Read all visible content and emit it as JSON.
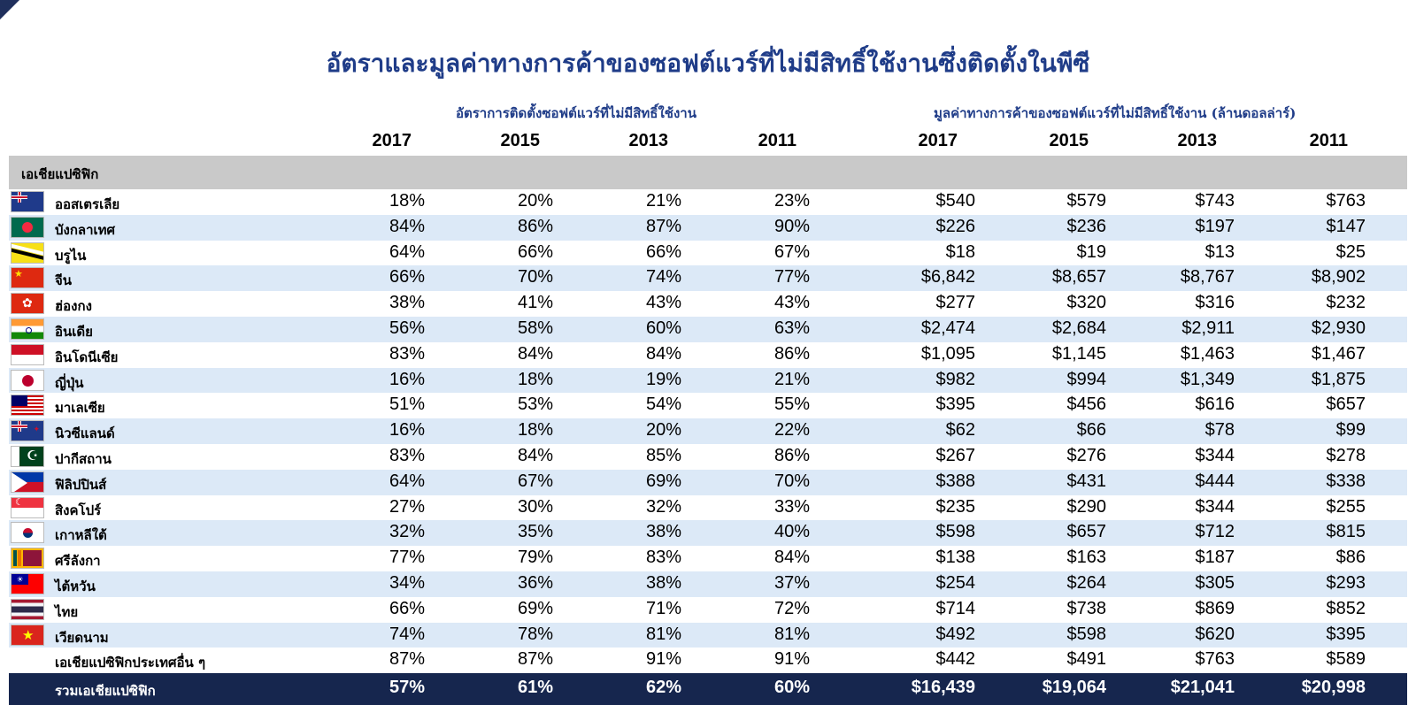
{
  "title": "อัตราและมูลค่าทางการค้าของซอฟต์แวร์ที่ไม่มีสิทธิ์ใช้งานซึ่งติดตั้งในพีซี",
  "group_headers": {
    "rate": "อัตราการติดตั้งซอฟต์แวร์ที่ไม่มีสิทธิ์ใช้งาน",
    "value": "มูลค่าทางการค้าของซอฟต์แวร์ที่ไม่มีสิทธิ์ใช้งาน (ล้านดอลล่าร์)"
  },
  "years": [
    "2017",
    "2015",
    "2013",
    "2011",
    "2017",
    "2015",
    "2013",
    "2011"
  ],
  "region": "เอเชียแปซิฟิก",
  "rows": [
    {
      "flag": "australia-flag-icon",
      "name": "ออสเตรเลีย",
      "values": [
        "18%",
        "20%",
        "21%",
        "23%",
        "$540",
        "$579",
        "$743",
        "$763"
      ]
    },
    {
      "flag": "bangladesh-flag-icon",
      "name": "บังกลาเทศ",
      "values": [
        "84%",
        "86%",
        "87%",
        "90%",
        "$226",
        "$236",
        "$197",
        "$147"
      ]
    },
    {
      "flag": "brunei-flag-icon",
      "name": "บรูไน",
      "values": [
        "64%",
        "66%",
        "66%",
        "67%",
        "$18",
        "$19",
        "$13",
        "$25"
      ]
    },
    {
      "flag": "china-flag-icon",
      "name": "จีน",
      "values": [
        "66%",
        "70%",
        "74%",
        "77%",
        "$6,842",
        "$8,657",
        "$8,767",
        "$8,902"
      ]
    },
    {
      "flag": "hong-kong-flag-icon",
      "name": "ฮ่องกง",
      "values": [
        "38%",
        "41%",
        "43%",
        "43%",
        "$277",
        "$320",
        "$316",
        "$232"
      ]
    },
    {
      "flag": "india-flag-icon",
      "name": "อินเดีย",
      "values": [
        "56%",
        "58%",
        "60%",
        "63%",
        "$2,474",
        "$2,684",
        "$2,911",
        "$2,930"
      ]
    },
    {
      "flag": "indonesia-flag-icon",
      "name": "อินโดนีเซีย",
      "values": [
        "83%",
        "84%",
        "84%",
        "86%",
        "$1,095",
        "$1,145",
        "$1,463",
        "$1,467"
      ]
    },
    {
      "flag": "japan-flag-icon",
      "name": "ญี่ปุ่น",
      "values": [
        "16%",
        "18%",
        "19%",
        "21%",
        "$982",
        "$994",
        "$1,349",
        "$1,875"
      ]
    },
    {
      "flag": "malaysia-flag-icon",
      "name": "มาเลเซีย",
      "values": [
        "51%",
        "53%",
        "54%",
        "55%",
        "$395",
        "$456",
        "$616",
        "$657"
      ]
    },
    {
      "flag": "new-zealand-flag-icon",
      "name": "นิวซีแลนด์",
      "values": [
        "16%",
        "18%",
        "20%",
        "22%",
        "$62",
        "$66",
        "$78",
        "$99"
      ]
    },
    {
      "flag": "pakistan-flag-icon",
      "name": "ปากีสถาน",
      "values": [
        "83%",
        "84%",
        "85%",
        "86%",
        "$267",
        "$276",
        "$344",
        "$278"
      ]
    },
    {
      "flag": "philippines-flag-icon",
      "name": "ฟิลิปปินส์",
      "values": [
        "64%",
        "67%",
        "69%",
        "70%",
        "$388",
        "$431",
        "$444",
        "$338"
      ]
    },
    {
      "flag": "singapore-flag-icon",
      "name": "สิงคโปร์",
      "values": [
        "27%",
        "30%",
        "32%",
        "33%",
        "$235",
        "$290",
        "$344",
        "$255"
      ]
    },
    {
      "flag": "south-korea-flag-icon",
      "name": "เกาหลีใต้",
      "values": [
        "32%",
        "35%",
        "38%",
        "40%",
        "$598",
        "$657",
        "$712",
        "$815"
      ]
    },
    {
      "flag": "sri-lanka-flag-icon",
      "name": "ศรีลังกา",
      "values": [
        "77%",
        "79%",
        "83%",
        "84%",
        "$138",
        "$163",
        "$187",
        "$86"
      ]
    },
    {
      "flag": "taiwan-flag-icon",
      "name": "ไต้หวัน",
      "values": [
        "34%",
        "36%",
        "38%",
        "37%",
        "$254",
        "$264",
        "$305",
        "$293"
      ]
    },
    {
      "flag": "thailand-flag-icon",
      "name": "ไทย",
      "values": [
        "66%",
        "69%",
        "71%",
        "72%",
        "$714",
        "$738",
        "$869",
        "$852"
      ]
    },
    {
      "flag": "vietnam-flag-icon",
      "name": "เวียดนาม",
      "values": [
        "74%",
        "78%",
        "81%",
        "81%",
        "$492",
        "$598",
        "$620",
        "$395"
      ]
    },
    {
      "flag": "",
      "name": "เอเชียแปซิฟิกประเทศอื่น ๆ",
      "values": [
        "87%",
        "87%",
        "91%",
        "91%",
        "$442",
        "$491",
        "$763",
        "$589"
      ]
    }
  ],
  "total": {
    "name": "รวมเอเชียแปซิฟิก",
    "values": [
      "57%",
      "61%",
      "62%",
      "60%",
      "$16,439",
      "$19,064",
      "$21,041",
      "$20,998"
    ]
  },
  "colors": {
    "title": "#1f3c88",
    "total_bg": "#16264e",
    "stripe": "#dce9f7",
    "region_bar": "#c9c9c9"
  }
}
